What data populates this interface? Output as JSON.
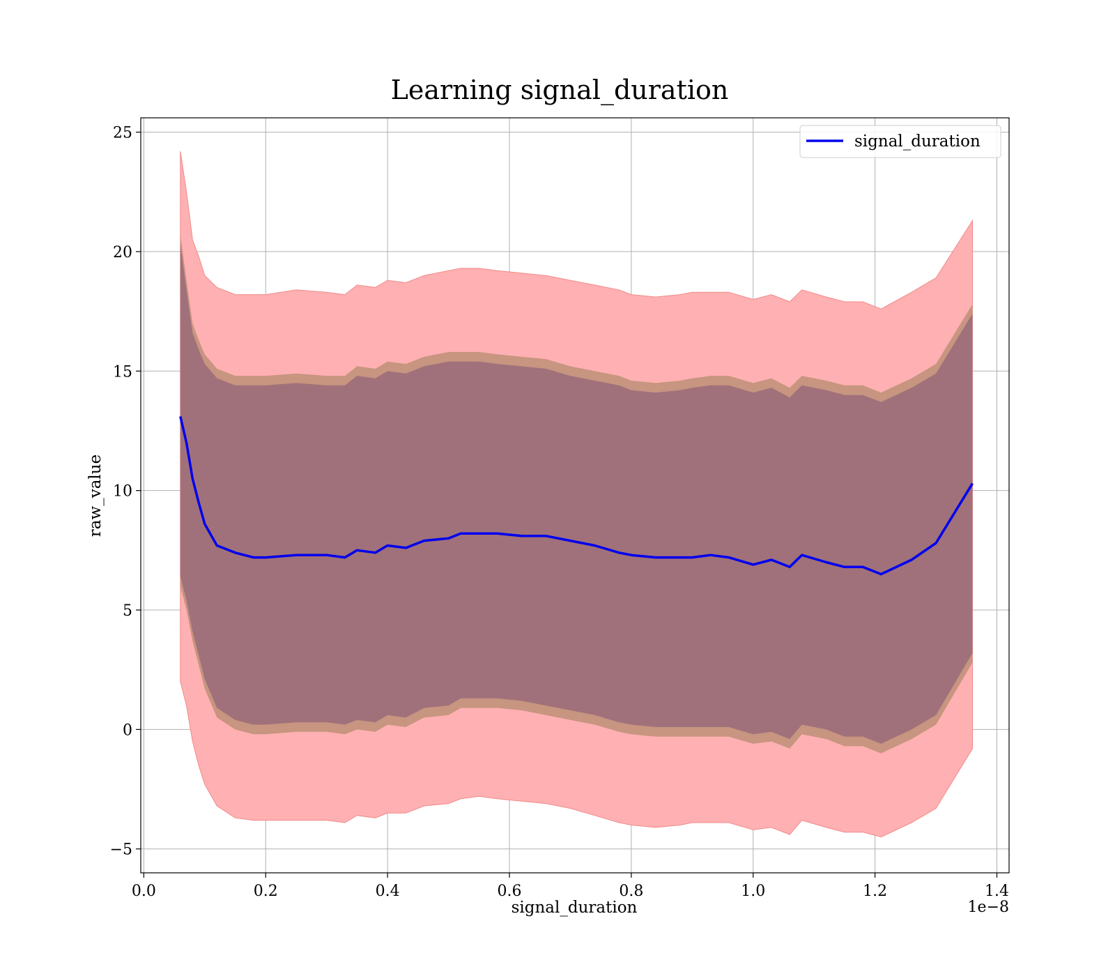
{
  "chart_data": {
    "type": "line",
    "title": "Learning signal_duration",
    "xlabel": "signal_duration",
    "ylabel": "raw_value",
    "x_scale_label": "1e−8",
    "xlim": [
      -0.005,
      1.42
    ],
    "ylim": [
      -6,
      25.6
    ],
    "x_ticks": [
      0.0,
      0.2,
      0.4,
      0.6,
      0.8,
      1.0,
      1.2,
      1.4
    ],
    "x_tick_labels": [
      "0.0",
      "0.2",
      "0.4",
      "0.6",
      "0.8",
      "1.0",
      "1.2",
      "1.4"
    ],
    "y_ticks": [
      -5,
      0,
      5,
      10,
      15,
      20,
      25
    ],
    "y_tick_labels": [
      "−5",
      "0",
      "5",
      "10",
      "15",
      "20",
      "25"
    ],
    "grid": true,
    "legend": {
      "position": "top-right",
      "entries": [
        "signal_duration"
      ]
    },
    "colors": {
      "line": "#0000ee",
      "outer_band": "#ffb0b2",
      "outer_band_edge": "#f08a8a",
      "inner_band": "#c79580",
      "core_band": "#a0717a",
      "grid": "#b0b0b0"
    },
    "x": [
      0.06,
      0.07,
      0.08,
      0.09,
      0.1,
      0.12,
      0.15,
      0.18,
      0.2,
      0.25,
      0.3,
      0.33,
      0.35,
      0.38,
      0.4,
      0.43,
      0.46,
      0.5,
      0.52,
      0.55,
      0.58,
      0.62,
      0.66,
      0.7,
      0.74,
      0.78,
      0.8,
      0.84,
      0.88,
      0.9,
      0.93,
      0.96,
      1.0,
      1.03,
      1.06,
      1.08,
      1.12,
      1.15,
      1.18,
      1.21,
      1.26,
      1.3,
      1.36
    ],
    "series": [
      {
        "name": "signal_duration",
        "role": "mean",
        "values": [
          13.1,
          12.0,
          10.5,
          9.5,
          8.6,
          7.7,
          7.4,
          7.2,
          7.2,
          7.3,
          7.3,
          7.2,
          7.5,
          7.4,
          7.7,
          7.6,
          7.9,
          8.0,
          8.2,
          8.2,
          8.2,
          8.1,
          8.1,
          7.9,
          7.7,
          7.4,
          7.3,
          7.2,
          7.2,
          7.2,
          7.3,
          7.2,
          6.9,
          7.1,
          6.8,
          7.3,
          7.0,
          6.8,
          6.8,
          6.5,
          7.1,
          7.8,
          10.3
        ]
      },
      {
        "name": "outer_upper",
        "values": [
          24.2,
          22.5,
          20.5,
          19.8,
          19.0,
          18.5,
          18.2,
          18.2,
          18.2,
          18.4,
          18.3,
          18.2,
          18.6,
          18.5,
          18.8,
          18.7,
          19.0,
          19.2,
          19.3,
          19.3,
          19.2,
          19.1,
          19.0,
          18.8,
          18.6,
          18.4,
          18.2,
          18.1,
          18.2,
          18.3,
          18.3,
          18.3,
          18.0,
          18.2,
          17.9,
          18.4,
          18.1,
          17.9,
          17.9,
          17.6,
          18.3,
          18.9,
          21.3
        ]
      },
      {
        "name": "outer_lower",
        "values": [
          2.0,
          1.0,
          -0.5,
          -1.5,
          -2.3,
          -3.2,
          -3.7,
          -3.8,
          -3.8,
          -3.8,
          -3.8,
          -3.9,
          -3.6,
          -3.7,
          -3.5,
          -3.5,
          -3.2,
          -3.1,
          -2.9,
          -2.8,
          -2.9,
          -3.0,
          -3.1,
          -3.3,
          -3.6,
          -3.9,
          -4.0,
          -4.1,
          -4.0,
          -3.9,
          -3.9,
          -3.9,
          -4.2,
          -4.1,
          -4.4,
          -3.8,
          -4.1,
          -4.3,
          -4.3,
          -4.5,
          -3.9,
          -3.3,
          -0.8
        ]
      },
      {
        "name": "inner_upper",
        "values": [
          20.7,
          18.8,
          17.0,
          16.3,
          15.7,
          15.1,
          14.8,
          14.8,
          14.8,
          14.9,
          14.8,
          14.8,
          15.2,
          15.1,
          15.4,
          15.3,
          15.6,
          15.8,
          15.8,
          15.8,
          15.7,
          15.6,
          15.5,
          15.2,
          15.0,
          14.8,
          14.6,
          14.5,
          14.6,
          14.7,
          14.8,
          14.8,
          14.5,
          14.7,
          14.3,
          14.8,
          14.6,
          14.4,
          14.4,
          14.1,
          14.7,
          15.3,
          17.8
        ]
      },
      {
        "name": "inner_lower",
        "values": [
          6.0,
          5.0,
          3.7,
          2.7,
          1.7,
          0.5,
          0.0,
          -0.2,
          -0.2,
          -0.1,
          -0.1,
          -0.2,
          0.0,
          -0.1,
          0.2,
          0.1,
          0.5,
          0.6,
          0.9,
          0.9,
          0.9,
          0.8,
          0.6,
          0.4,
          0.2,
          -0.1,
          -0.2,
          -0.3,
          -0.3,
          -0.3,
          -0.3,
          -0.3,
          -0.6,
          -0.5,
          -0.8,
          -0.2,
          -0.4,
          -0.7,
          -0.7,
          -1.0,
          -0.4,
          0.2,
          2.8
        ]
      },
      {
        "name": "core_upper",
        "values": [
          20.3,
          18.4,
          16.6,
          15.9,
          15.3,
          14.7,
          14.4,
          14.4,
          14.4,
          14.5,
          14.4,
          14.4,
          14.8,
          14.7,
          15.0,
          14.9,
          15.2,
          15.4,
          15.4,
          15.4,
          15.3,
          15.2,
          15.1,
          14.8,
          14.6,
          14.4,
          14.2,
          14.1,
          14.2,
          14.3,
          14.4,
          14.4,
          14.1,
          14.3,
          13.9,
          14.4,
          14.2,
          14.0,
          14.0,
          13.7,
          14.3,
          14.9,
          17.4
        ]
      },
      {
        "name": "core_lower",
        "values": [
          6.4,
          5.4,
          4.1,
          3.1,
          2.1,
          0.9,
          0.4,
          0.2,
          0.2,
          0.3,
          0.3,
          0.2,
          0.4,
          0.3,
          0.6,
          0.5,
          0.9,
          1.0,
          1.3,
          1.3,
          1.3,
          1.2,
          1.0,
          0.8,
          0.6,
          0.3,
          0.2,
          0.1,
          0.1,
          0.1,
          0.1,
          0.1,
          -0.2,
          -0.1,
          -0.4,
          0.2,
          0.0,
          -0.3,
          -0.3,
          -0.6,
          0.0,
          0.6,
          3.2
        ]
      }
    ]
  }
}
